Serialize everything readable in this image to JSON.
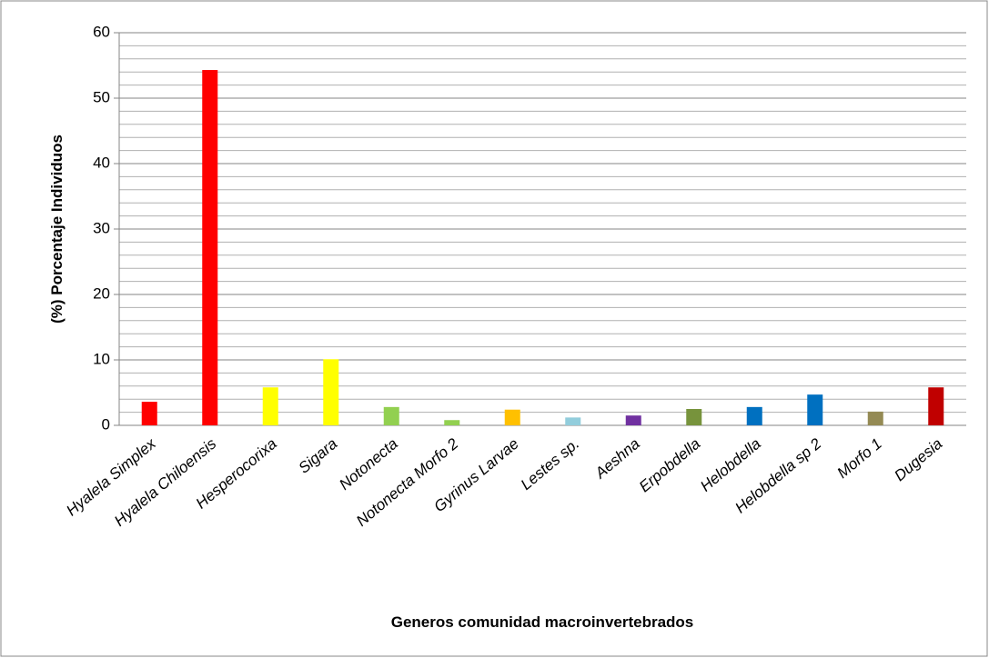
{
  "chart_data": {
    "type": "bar",
    "xlabel": "Generos comunidad macroinvertebrados",
    "ylabel": "(%) Porcentaje Individuos",
    "categories": [
      "Hyalela Simplex",
      "Hyalela Chiloensis",
      "Hesperocorixa",
      "Sigara",
      "Notonecta",
      "Notonecta Morfo 2",
      "Gyrinus Larvae",
      "Lestes sp.",
      "Aeshna",
      "Erpobdella",
      "Helobdella",
      "Helobdella sp 2",
      "Morfo 1",
      "Dugesia"
    ],
    "values": [
      3.6,
      54.3,
      5.8,
      10.1,
      2.8,
      0.8,
      2.4,
      1.2,
      1.5,
      2.5,
      2.8,
      4.7,
      2.1,
      5.8
    ],
    "colors": [
      "#ff0000",
      "#ff0000",
      "#ffff00",
      "#ffff00",
      "#92d050",
      "#92d050",
      "#ffc000",
      "#92cddc",
      "#7030a0",
      "#77933c",
      "#0070c0",
      "#0070c0",
      "#948a54",
      "#c00000"
    ],
    "ylim": [
      0,
      60
    ],
    "yticks": [
      0,
      10,
      20,
      30,
      40,
      50,
      60
    ],
    "grid": true,
    "minor_grid_step": 2
  }
}
